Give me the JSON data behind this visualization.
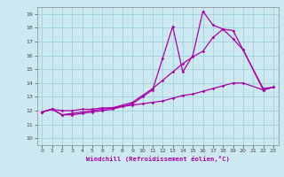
{
  "xlabel": "Windchill (Refroidissement éolien,°C)",
  "background_color": "#cce8f0",
  "grid_color": "#99ccdd",
  "line_color": "#aa00aa",
  "xlim": [
    -0.5,
    23.5
  ],
  "ylim": [
    9.5,
    19.5
  ],
  "xticks": [
    0,
    1,
    2,
    3,
    4,
    5,
    6,
    7,
    8,
    9,
    10,
    11,
    12,
    13,
    14,
    15,
    16,
    17,
    18,
    19,
    20,
    21,
    22,
    23
  ],
  "yticks": [
    10,
    11,
    12,
    13,
    14,
    15,
    16,
    17,
    18,
    19
  ],
  "series": [
    {
      "x": [
        0,
        1,
        2,
        3,
        4,
        5,
        6,
        7,
        8,
        9,
        10,
        11,
        12,
        13,
        14,
        15,
        16,
        17,
        18,
        19,
        20,
        22,
        23
      ],
      "y": [
        11.9,
        12.1,
        11.7,
        11.7,
        11.8,
        11.9,
        12.0,
        12.1,
        12.3,
        12.5,
        13.0,
        13.5,
        15.8,
        18.1,
        14.8,
        16.0,
        19.2,
        18.2,
        17.9,
        17.2,
        16.4,
        13.6,
        13.7
      ]
    },
    {
      "x": [
        0,
        1,
        2,
        3,
        4,
        5,
        6,
        7,
        8,
        9,
        10,
        11,
        12,
        13,
        14,
        15,
        16,
        17,
        18,
        19,
        20,
        22,
        23
      ],
      "y": [
        11.9,
        12.1,
        11.7,
        11.8,
        11.9,
        12.0,
        12.1,
        12.2,
        12.4,
        12.6,
        13.1,
        13.6,
        14.2,
        14.8,
        15.4,
        15.9,
        16.3,
        17.3,
        17.9,
        17.8,
        16.4,
        13.5,
        13.7
      ]
    },
    {
      "x": [
        0,
        1,
        2,
        3,
        4,
        5,
        6,
        7,
        8,
        9,
        10,
        11,
        12,
        13,
        14,
        15,
        16,
        17,
        18,
        19,
        20,
        22,
        23
      ],
      "y": [
        11.9,
        12.1,
        12.0,
        12.0,
        12.1,
        12.1,
        12.2,
        12.2,
        12.3,
        12.4,
        12.5,
        12.6,
        12.7,
        12.9,
        13.1,
        13.2,
        13.4,
        13.6,
        13.8,
        14.0,
        14.0,
        13.5,
        13.7
      ]
    }
  ]
}
